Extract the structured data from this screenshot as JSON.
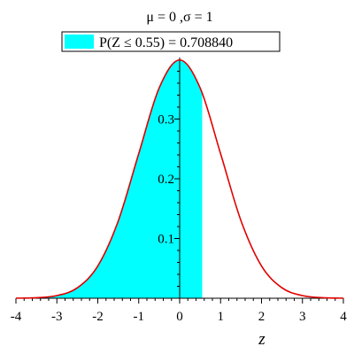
{
  "chart_data": {
    "type": "area",
    "title": "μ = 0 ,σ = 1",
    "legend": "P(Z ≤ 0.55) = 0.708840",
    "legend_placement": "top-center",
    "xlabel": "z",
    "ylabel": "",
    "xlim": [
      -4,
      4
    ],
    "ylim": [
      0,
      0.4
    ],
    "x_ticks": [
      "-4",
      "-3",
      "-2",
      "-1",
      "0",
      "1",
      "2",
      "3",
      "4"
    ],
    "y_ticks": [
      "0.1",
      "0.2",
      "0.3"
    ],
    "grid": false,
    "series": [
      {
        "type": "line",
        "x": [
          -4,
          -3.5,
          -3,
          -2.5,
          -2,
          -1.5,
          -1,
          -0.5,
          0,
          0.5,
          1,
          1.5,
          2,
          2.5,
          3,
          3.5,
          4
        ],
        "y": [
          0.0001,
          0.0009,
          0.0044,
          0.0175,
          0.054,
          0.1295,
          0.242,
          0.3521,
          0.3989,
          0.3521,
          0.242,
          0.1295,
          0.054,
          0.0175,
          0.0044,
          0.0009,
          0.0001
        ]
      }
    ],
    "shaded_region": {
      "from": -4,
      "to": 0.55,
      "probability": 0.70884
    },
    "colors": {
      "curve": "#e00000",
      "fill": "#00ffff",
      "axis": "#000000"
    }
  }
}
